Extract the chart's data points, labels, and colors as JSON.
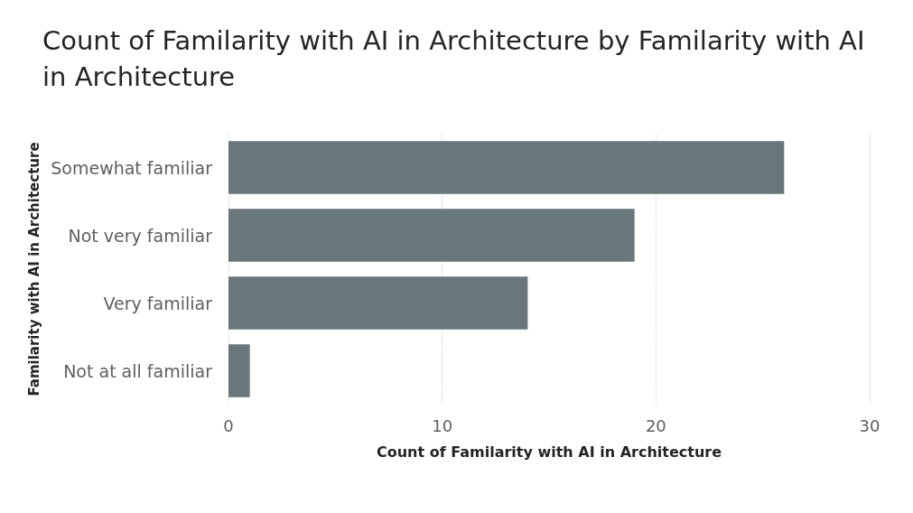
{
  "chart_data": {
    "type": "bar",
    "orientation": "horizontal",
    "title": "Count of Familarity with AI in Architecture by Familarity with AI in Architecture",
    "xlabel": "Count of Familarity with AI in Architecture",
    "ylabel": "Familarity with AI in Architecture",
    "categories": [
      "Somewhat familiar",
      "Not very familiar",
      "Very familiar",
      "Not at all familiar"
    ],
    "values": [
      26,
      19,
      14,
      1
    ],
    "color": "#69767a",
    "xlim": [
      0,
      30
    ],
    "xticks": [
      0,
      10,
      20,
      30
    ],
    "grid": "x"
  }
}
